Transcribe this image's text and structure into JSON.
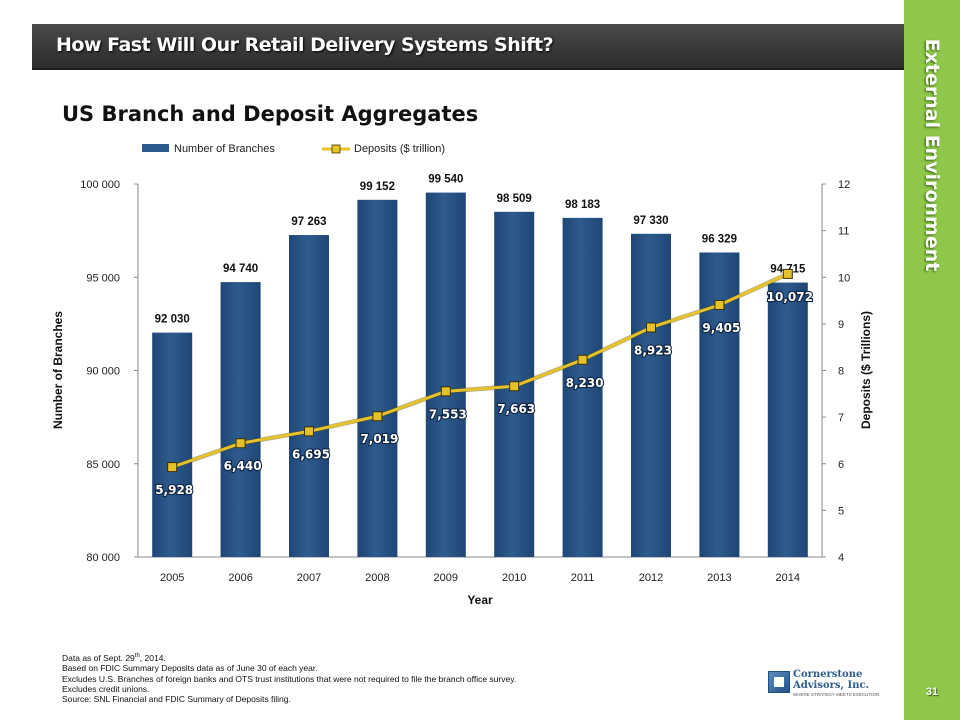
{
  "slide": {
    "header_title": "How Fast Will Our Retail Delivery Systems Shift?",
    "side_label": "External Environment",
    "page_number": "31"
  },
  "chart_data": {
    "type": "bar",
    "title": "US Branch and Deposit Aggregates",
    "xlabel": "Year",
    "ylabel": "Number of Branches",
    "y2label": "Deposits ($ Trillions)",
    "categories": [
      "2005",
      "2006",
      "2007",
      "2008",
      "2009",
      "2010",
      "2011",
      "2012",
      "2013",
      "2014"
    ],
    "ylim": [
      80000,
      100000
    ],
    "y2lim": [
      4,
      12
    ],
    "y_ticks": [
      "80 000",
      "85 000",
      "90 000",
      "95 000",
      "100 000"
    ],
    "y2_ticks": [
      "4",
      "5",
      "6",
      "7",
      "8",
      "9",
      "10",
      "11",
      "12"
    ],
    "legend_position": "top-left",
    "series": [
      {
        "name": "Number of Branches",
        "kind": "bar",
        "axis": "left",
        "color": "#2e5b8e",
        "values": [
          92030,
          94740,
          97263,
          99152,
          99540,
          98509,
          98183,
          97330,
          96329,
          94715
        ],
        "labels": [
          "92 030",
          "94 740",
          "97 263",
          "99 152",
          "99 540",
          "98 509",
          "98 183",
          "97 330",
          "96 329",
          "94 715"
        ]
      },
      {
        "name": "Deposits ($ trillion)",
        "kind": "line",
        "axis": "right",
        "color": "#e6c22a",
        "values": [
          5.928,
          6.44,
          6.695,
          7.019,
          7.553,
          7.663,
          8.23,
          8.923,
          9.405,
          10.072
        ],
        "labels": [
          "5,928",
          "6,440",
          "6,695",
          "7,019",
          "7,553",
          "7,663",
          "8,230",
          "8,923",
          "9,405",
          "10,072"
        ]
      }
    ]
  },
  "footnotes": {
    "line1_prefix": "Data as of Sept. 29",
    "line1_sup": "th",
    "line1_suffix": ", 2014.",
    "line2": "Based on FDIC Summary Deposits data as of June 30 of each year.",
    "line3": "Excludes U.S. Branches of foreign banks and OTS trust institutions that were not required to file the branch office survey.",
    "line4": "Excludes credit unions.",
    "line5": "Source: SNL Financial and FDIC Summary of Deposits filing."
  },
  "logo": {
    "name_line1": "Cornerstone",
    "name_line2": "Advisors, Inc.",
    "tagline": "WHERE STRATEGY MEETS EXECUTION"
  }
}
